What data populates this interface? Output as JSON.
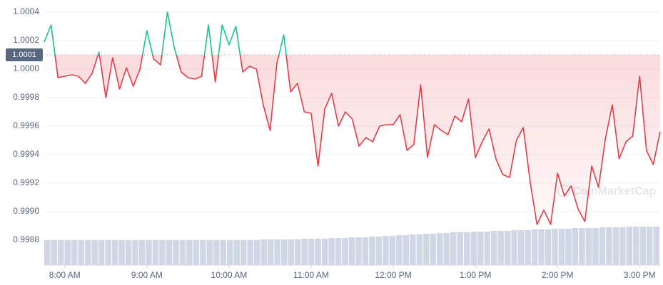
{
  "chart_data": {
    "type": "line",
    "x": [
      465,
      470,
      475,
      480,
      485,
      490,
      495,
      500,
      505,
      510,
      515,
      520,
      525,
      530,
      535,
      540,
      545,
      550,
      555,
      560,
      565,
      570,
      575,
      580,
      585,
      590,
      595,
      600,
      605,
      610,
      615,
      620,
      625,
      630,
      635,
      640,
      645,
      650,
      655,
      660,
      665,
      670,
      675,
      680,
      685,
      690,
      695,
      700,
      705,
      710,
      715,
      720,
      725,
      730,
      735,
      740,
      745,
      750,
      755,
      760,
      765,
      770,
      775,
      780,
      785,
      790,
      795,
      800,
      805,
      810,
      815,
      820,
      825,
      830,
      835,
      840,
      845,
      850,
      855,
      860,
      865,
      870,
      875,
      880,
      885,
      890,
      895,
      900,
      905,
      910,
      915
    ],
    "series": [
      {
        "values": [
          1.00019,
          1.00031,
          0.99994,
          0.99995,
          0.99996,
          0.99995,
          0.9999,
          0.99997,
          1.00012,
          0.9998,
          1.00008,
          0.99986,
          1.00001,
          0.99988,
          1.0,
          1.00027,
          1.00007,
          1.00003,
          1.0004,
          1.00015,
          0.99998,
          0.99994,
          0.99993,
          0.99995,
          1.00031,
          0.99991,
          1.00031,
          1.00017,
          1.0003,
          0.99998,
          1.00002,
          1.0,
          0.99975,
          0.99957,
          1.00004,
          1.00024,
          0.99984,
          0.9999,
          0.9997,
          0.99969,
          0.99932,
          0.99972,
          0.99983,
          0.9996,
          0.9997,
          0.99965,
          0.99946,
          0.99952,
          0.99949,
          0.9996,
          0.99961,
          0.99961,
          0.99968,
          0.99943,
          0.99947,
          0.99989,
          0.99938,
          0.99961,
          0.99957,
          0.99954,
          0.99967,
          0.99963,
          0.99979,
          0.99938,
          0.99949,
          0.99958,
          0.99937,
          0.99926,
          0.99924,
          0.9995,
          0.99959,
          0.99921,
          0.99891,
          0.99901,
          0.99891,
          0.99927,
          0.99911,
          0.99918,
          0.99902,
          0.99893,
          0.99932,
          0.99917,
          0.99951,
          0.99975,
          0.99937,
          0.99949,
          0.99953,
          0.99995,
          0.99943,
          0.99933,
          0.99956
        ],
        "color_above": "#16c784",
        "color_below": "#ea3943"
      }
    ],
    "volume": [
      35,
      35,
      35,
      35,
      35,
      35,
      35,
      35,
      35,
      35,
      35,
      35,
      35,
      35,
      35,
      35,
      35,
      35,
      35,
      35,
      35,
      35,
      35,
      35,
      35,
      35,
      35,
      35,
      35,
      35,
      35,
      35,
      36,
      36,
      36,
      36,
      36,
      36,
      37,
      37,
      37,
      37,
      38,
      38,
      38,
      39,
      39,
      39,
      40,
      40,
      41,
      41,
      42,
      42,
      43,
      43,
      44,
      44,
      45,
      45,
      46,
      46,
      46,
      47,
      47,
      47,
      48,
      48,
      48,
      49,
      49,
      49,
      50,
      50,
      50,
      51,
      51,
      51,
      52,
      52,
      52,
      52,
      53,
      53,
      53,
      53,
      54,
      54,
      54,
      54,
      54
    ],
    "volume_color": "#cfd6e4",
    "reference": 1.0001,
    "watermark": "CoinMarketCap",
    "xlim": [
      465,
      915
    ],
    "ylim": [
      0.998625,
      1.000485
    ],
    "xticks": [
      {
        "value": 480,
        "label": "8:00 AM"
      },
      {
        "value": 540,
        "label": "9:00 AM"
      },
      {
        "value": 600,
        "label": "10:00 AM"
      },
      {
        "value": 660,
        "label": "11:00 AM"
      },
      {
        "value": 720,
        "label": "12:00 PM"
      },
      {
        "value": 780,
        "label": "1:00 PM"
      },
      {
        "value": 840,
        "label": "2:00 PM"
      },
      {
        "value": 900,
        "label": "3:00 PM"
      }
    ],
    "yticks": [
      1.0004,
      1.0002,
      {
        "value": 1.0,
        "label": "1.0000"
      },
      0.9998,
      0.9996,
      0.9994,
      0.9992,
      {
        "value": 0.999,
        "label": "0.9990"
      },
      0.9988
    ],
    "grid": true
  }
}
